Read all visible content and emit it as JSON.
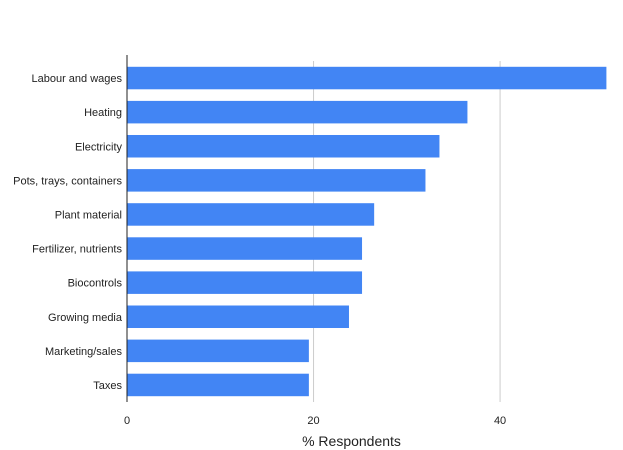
{
  "chart_data": {
    "type": "bar",
    "orientation": "horizontal",
    "title": "",
    "xlabel": "% Respondents",
    "ylabel": "",
    "categories": [
      "Labour and wages",
      "Heating",
      "Electricity",
      "Pots, trays, containers",
      "Plant material",
      "Fertilizer, nutrients",
      "Biocontrols",
      "Growing media",
      "Marketing/sales",
      "Taxes"
    ],
    "values": [
      51.4,
      36.5,
      33.5,
      32.0,
      26.5,
      25.2,
      25.2,
      23.8,
      19.5,
      19.5
    ],
    "xlim": [
      0,
      52
    ],
    "xticks": [
      {
        "value": 0,
        "label": "0"
      },
      {
        "value": 20,
        "label": "20"
      },
      {
        "value": 40,
        "label": "40"
      }
    ],
    "grid": true,
    "legend": "none",
    "bar_color": "#4285F4"
  }
}
